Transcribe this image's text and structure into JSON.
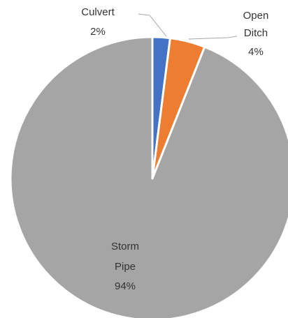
{
  "chart_data": {
    "type": "pie",
    "slices": [
      {
        "label": "Culvert",
        "value": 2,
        "value_label": "2%",
        "color": "#4472C4"
      },
      {
        "label": "Open Ditch",
        "value": 4,
        "value_label": "4%",
        "color": "#ED7D31"
      },
      {
        "label": "Storm Pipe",
        "value": 94,
        "value_label": "94%",
        "color": "#A5A5A5"
      }
    ],
    "start_angle_deg": 0,
    "direction": "clockwise",
    "slice_border_color": "#FFFFFF",
    "leader_line_color": "#A6A6A6",
    "legend": "none",
    "data_labels": "category name and percentage"
  }
}
